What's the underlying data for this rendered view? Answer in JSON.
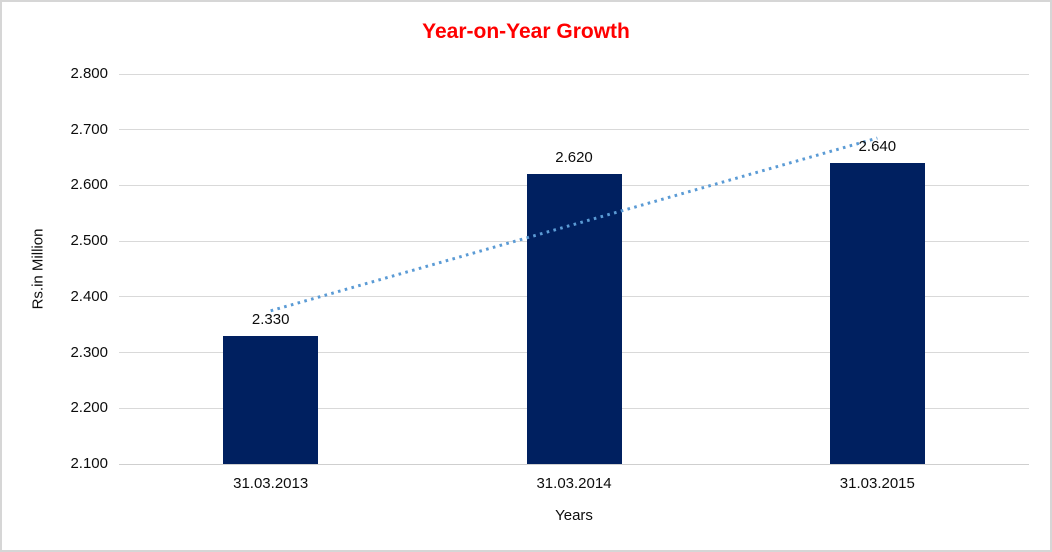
{
  "chart": {
    "title": "Year-on-Year Growth",
    "xlabel": "Years",
    "ylabel": "Rs.in Million"
  },
  "chart_data": {
    "type": "bar",
    "title": "Year-on-Year Growth",
    "xlabel": "Years",
    "ylabel": "Rs.in Million",
    "categories": [
      "31.03.2013",
      "31.03.2014",
      "31.03.2015"
    ],
    "values": [
      2.33,
      2.62,
      2.64
    ],
    "data_labels": [
      "2.330",
      "2.620",
      "2.640"
    ],
    "yticks": [
      "2.100",
      "2.200",
      "2.300",
      "2.400",
      "2.500",
      "2.600",
      "2.700",
      "2.800"
    ],
    "ylim": [
      2.1,
      2.8
    ],
    "grid": true,
    "legend": false,
    "colors": {
      "bar": "#002060",
      "trendline": "#5b9bd5",
      "title": "#ff0000",
      "gridline": "#d9d9d9",
      "text": "#0d0d0d"
    },
    "trendline": {
      "type": "linear",
      "style": "dotted"
    }
  }
}
